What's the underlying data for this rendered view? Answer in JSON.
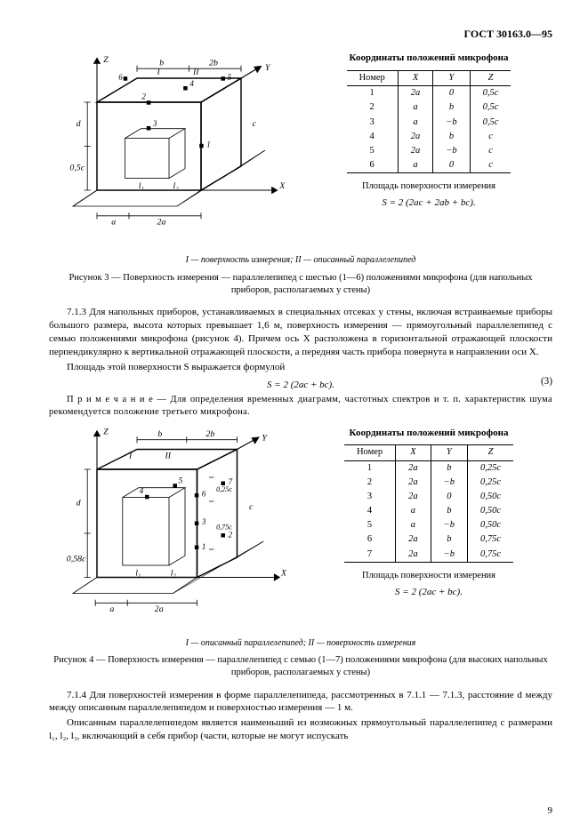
{
  "header": "ГОСТ 30163.0—95",
  "fig3": {
    "axis_z": "Z",
    "axis_y": "Y",
    "axis_x": "X",
    "surf1": "I",
    "surf2": "II",
    "dim_d": "d",
    "dim_05c": "0,5c",
    "dim_l1": "l₁",
    "dim_l2": "l₂",
    "dim_c": "c",
    "dim_a": "a",
    "dim_2a": "2a",
    "dim_b": "b",
    "dim_2b": "2b",
    "m1": "1",
    "m2": "2",
    "m3": "3",
    "m4": "4",
    "m5": "5",
    "m6": "6",
    "legend": "I — поверхность измерения; II — описанный параллелепипед",
    "caption": "Рисунок 3 — Поверхность измерения — параллелепипед с шестью (1—6) положениями микрофона (для напольных приборов, располагаемых у стены)"
  },
  "fig4": {
    "axis_z": "Z",
    "axis_y": "Y",
    "axis_x": "X",
    "surf1": "I",
    "surf2": "II",
    "dim_d": "d",
    "dim_058c": "0,58c",
    "dim_c": "c",
    "dim_l1": "l₁",
    "dim_l2": "l₂",
    "dim_075c": "0,75c",
    "dim_025c": "0,25c",
    "dim_a": "a",
    "dim_2a": "2a",
    "dim_b": "b",
    "dim_2b": "2b",
    "m1": "1",
    "m2": "2",
    "m3": "3",
    "m4": "4",
    "m5": "5",
    "m6": "6",
    "m7": "7",
    "legend": "I — описанный параллелепипед; II — поверхность измерения",
    "caption": "Рисунок 4 — Поверхность измерения — параллелепипед с семью (1—7) положениями микрофона (для высоких напольных приборов, располагаемых у стены)"
  },
  "table1": {
    "title": "Координаты положений микрофона",
    "head": [
      "Номер",
      "X",
      "Y",
      "Z"
    ],
    "rows": [
      [
        "1",
        "2a",
        "0",
        "0,5c"
      ],
      [
        "2",
        "a",
        "b",
        "0,5c"
      ],
      [
        "3",
        "a",
        "−b",
        "0,5c"
      ],
      [
        "4",
        "2a",
        "b",
        "c"
      ],
      [
        "5",
        "2a",
        "−b",
        "c"
      ],
      [
        "6",
        "a",
        "0",
        "c"
      ]
    ],
    "area_label": "Площадь поверхности измерения",
    "area_formula": "S = 2 (2ac + 2ab + bc)."
  },
  "table2": {
    "title": "Координаты положений микрофона",
    "head": [
      "Номер",
      "X",
      "Y",
      "Z"
    ],
    "rows": [
      [
        "1",
        "2a",
        "b",
        "0,25c"
      ],
      [
        "2",
        "2a",
        "−b",
        "0,25c"
      ],
      [
        "3",
        "2a",
        "0",
        "0,50c"
      ],
      [
        "4",
        "a",
        "b",
        "0,50c"
      ],
      [
        "5",
        "a",
        "−b",
        "0,50c"
      ],
      [
        "6",
        "2a",
        "b",
        "0,75c"
      ],
      [
        "7",
        "2a",
        "−b",
        "0,75c"
      ]
    ],
    "area_label": "Площадь поверхности измерения",
    "area_formula": "S = 2 (2ac + bc)."
  },
  "body": {
    "p713": "7.1.3 Для напольных приборов, устанавливаемых в специальных отсеках у стены, включая встраиваемые приборы большого размера, высота которых превышает 1,6 м, поверхность измерения — прямоугольный параллелепипед с семью положениями микрофона (рисунок 4). Причем ось X расположена в горизонтальной отражающей плоскости перпендикулярно к вертикальной отражающей плоскости, а передняя часть прибора повернута в направлении оси X.",
    "p_area": "Площадь этой поверхности S выражается формулой",
    "eq3": "S = 2 (2ac + bc).",
    "eq3_no": "(3)",
    "note": "П р и м е ч а н и е — Для определения временных диаграмм, частотных спектров и т. п. характеристик шума рекомендуется положение третьего микрофона.",
    "p714a": "7.1.4 Для поверхностей измерения в форме параллелепипеда, рассмотренных в 7.1.1 — 7.1.3, расстояние d между между описанным параллелепипедом и поверхностью измерения — 1 м.",
    "p714b": "Описанным параллелепипедом является наименьший из возможных прямоугольный параллелепипед с размерами l₁, l₂, l₃, включающий в себя прибор (части, которые не могут испускать"
  },
  "page_number": "9",
  "style": {
    "stroke": "#000000",
    "thin": 0.9,
    "thick": 1.6
  }
}
